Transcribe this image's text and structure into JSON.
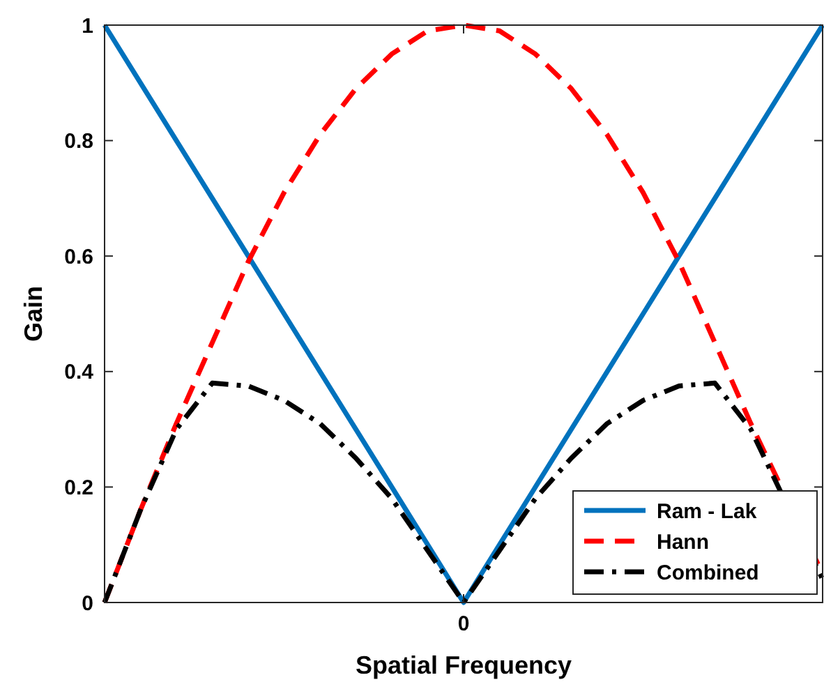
{
  "chart_data": {
    "type": "line",
    "xlabel": "Spatial Frequency",
    "ylabel": "Gain",
    "categories": [
      null,
      null,
      null,
      null,
      null,
      null,
      null,
      null,
      null,
      null,
      "0",
      null,
      null,
      null,
      null,
      null,
      null,
      null,
      null,
      null,
      null
    ],
    "ylim": [
      0,
      1
    ],
    "yticks": [
      0,
      0.2,
      0.4,
      0.6,
      0.8,
      1
    ],
    "grid": false,
    "legend": "bottom right",
    "marker": "none",
    "series": [
      {
        "name": "Ram - Lak",
        "color": "#0072bd",
        "line_style": "solid",
        "values": [
          1,
          0.9,
          0.8,
          0.7,
          0.6,
          0.5,
          0.4,
          0.3,
          0.2,
          0.1,
          0,
          0.1,
          0.2,
          0.3,
          0.4,
          0.5,
          0.6,
          0.7,
          0.8,
          0.9,
          1
        ]
      },
      {
        "name": "Hann",
        "color": "#ff0000",
        "line_style": "dashed",
        "values": [
          0,
          0.16,
          0.31,
          0.45,
          0.59,
          0.71,
          0.81,
          0.89,
          0.95,
          0.99,
          1,
          0.99,
          0.95,
          0.89,
          0.81,
          0.71,
          0.59,
          0.45,
          0.31,
          null,
          0.05
        ]
      },
      {
        "name": "Combined",
        "color": "#000000",
        "line_style": "dashdot",
        "values": [
          0,
          0.16,
          0.3,
          0.38,
          0.375,
          0.35,
          0.31,
          0.25,
          0.18,
          0.09,
          0,
          0.09,
          0.18,
          0.25,
          0.31,
          0.35,
          0.375,
          0.38,
          0.3,
          null,
          0.04
        ]
      }
    ]
  }
}
